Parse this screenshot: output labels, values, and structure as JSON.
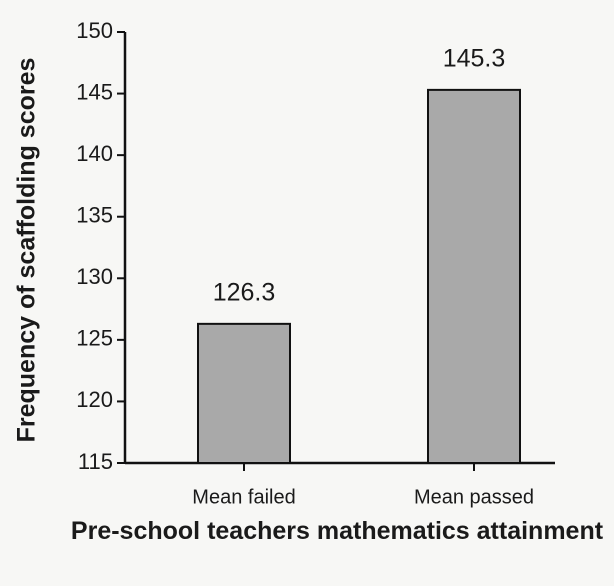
{
  "chart_data": {
    "type": "bar",
    "categories": [
      "Mean failed",
      "Mean passed"
    ],
    "values": [
      126.3,
      145.3
    ],
    "color": "#a9a9a9",
    "xlabel": "Pre-school teachers mathematics attainment",
    "ylabel": "Frequency of scaffolding scores",
    "ylim": [
      115,
      150
    ],
    "yticks": [
      115,
      120,
      125,
      130,
      135,
      140,
      145,
      150
    ]
  }
}
